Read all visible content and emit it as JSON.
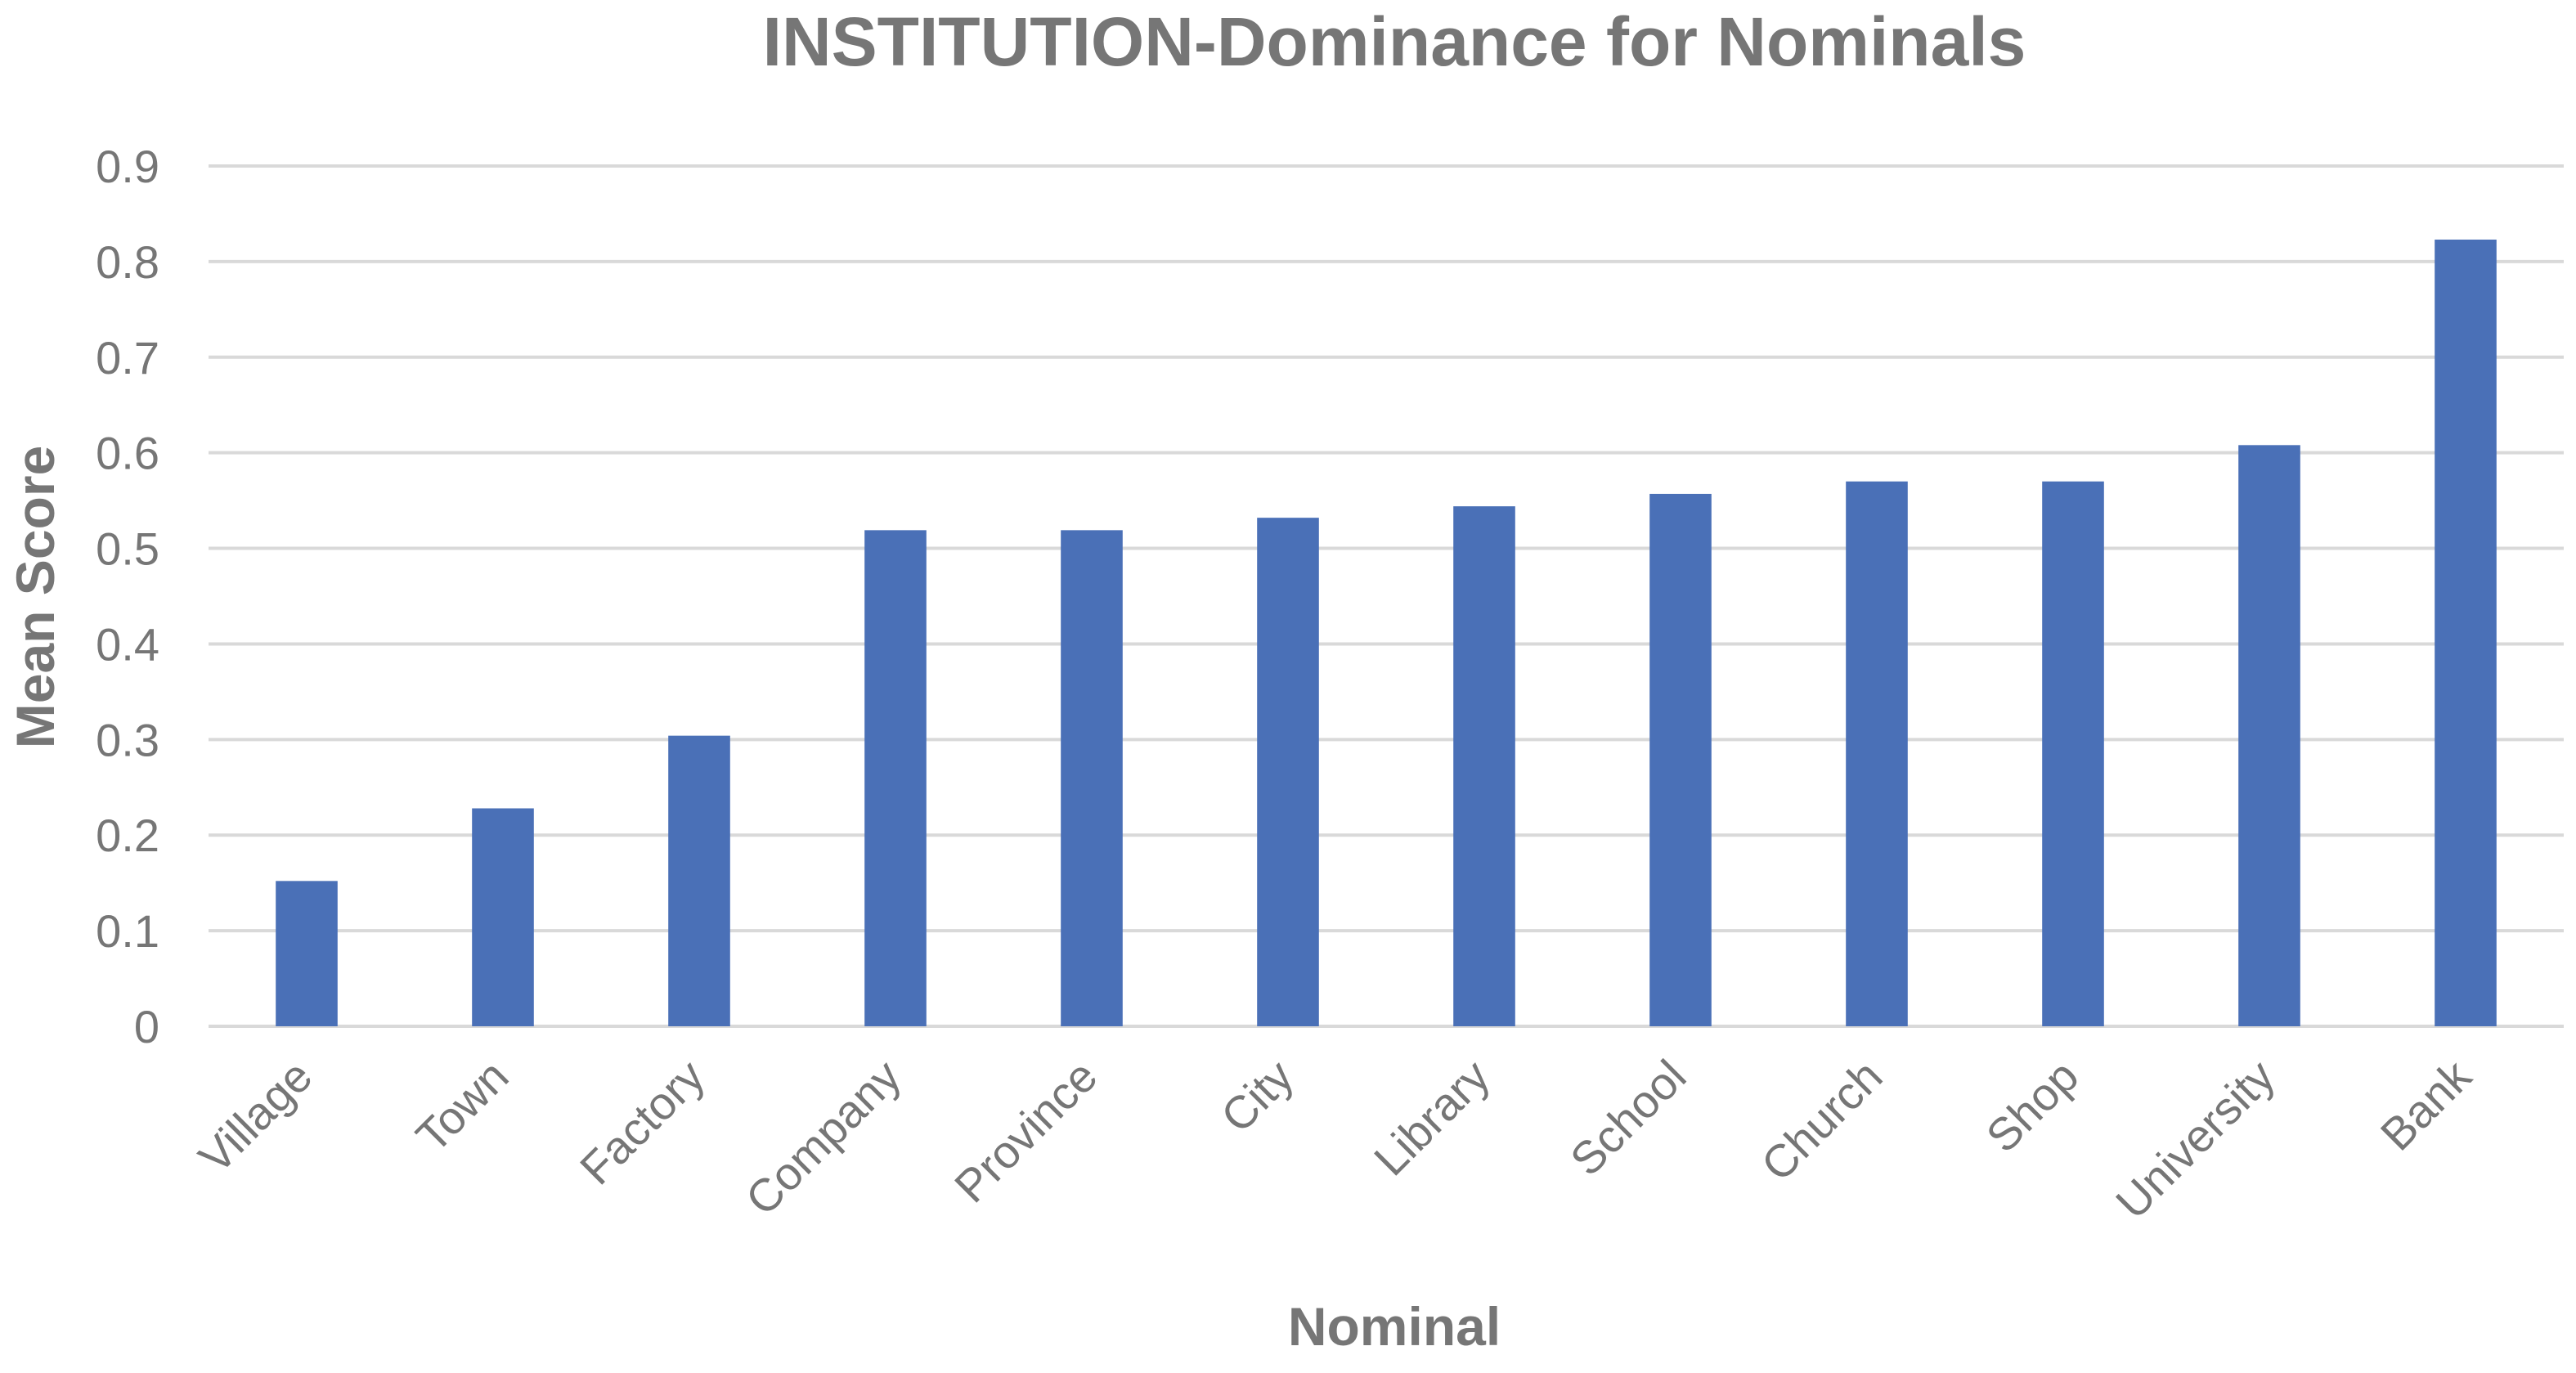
{
  "chart_data": {
    "type": "bar",
    "title": "INSTITUTION-Dominance for Nominals",
    "xlabel": "Nominal",
    "ylabel": "Mean Score",
    "categories": [
      "Village",
      "Town",
      "Factory",
      "Company",
      "Province",
      "City",
      "Library",
      "School",
      "Church",
      "Shop",
      "University",
      "Bank"
    ],
    "values": [
      0.152,
      0.228,
      0.304,
      0.519,
      0.519,
      0.532,
      0.544,
      0.557,
      0.57,
      0.57,
      0.608,
      0.823
    ],
    "ylim": [
      0,
      0.9
    ],
    "yticks": [
      "0",
      "0.1",
      "0.2",
      "0.3",
      "0.4",
      "0.5",
      "0.6",
      "0.7",
      "0.8",
      "0.9"
    ],
    "grid": true,
    "legend": "none",
    "colors": {
      "bar": "#4a70b7",
      "text": "#767676",
      "grid": "#d9d9d9"
    }
  }
}
